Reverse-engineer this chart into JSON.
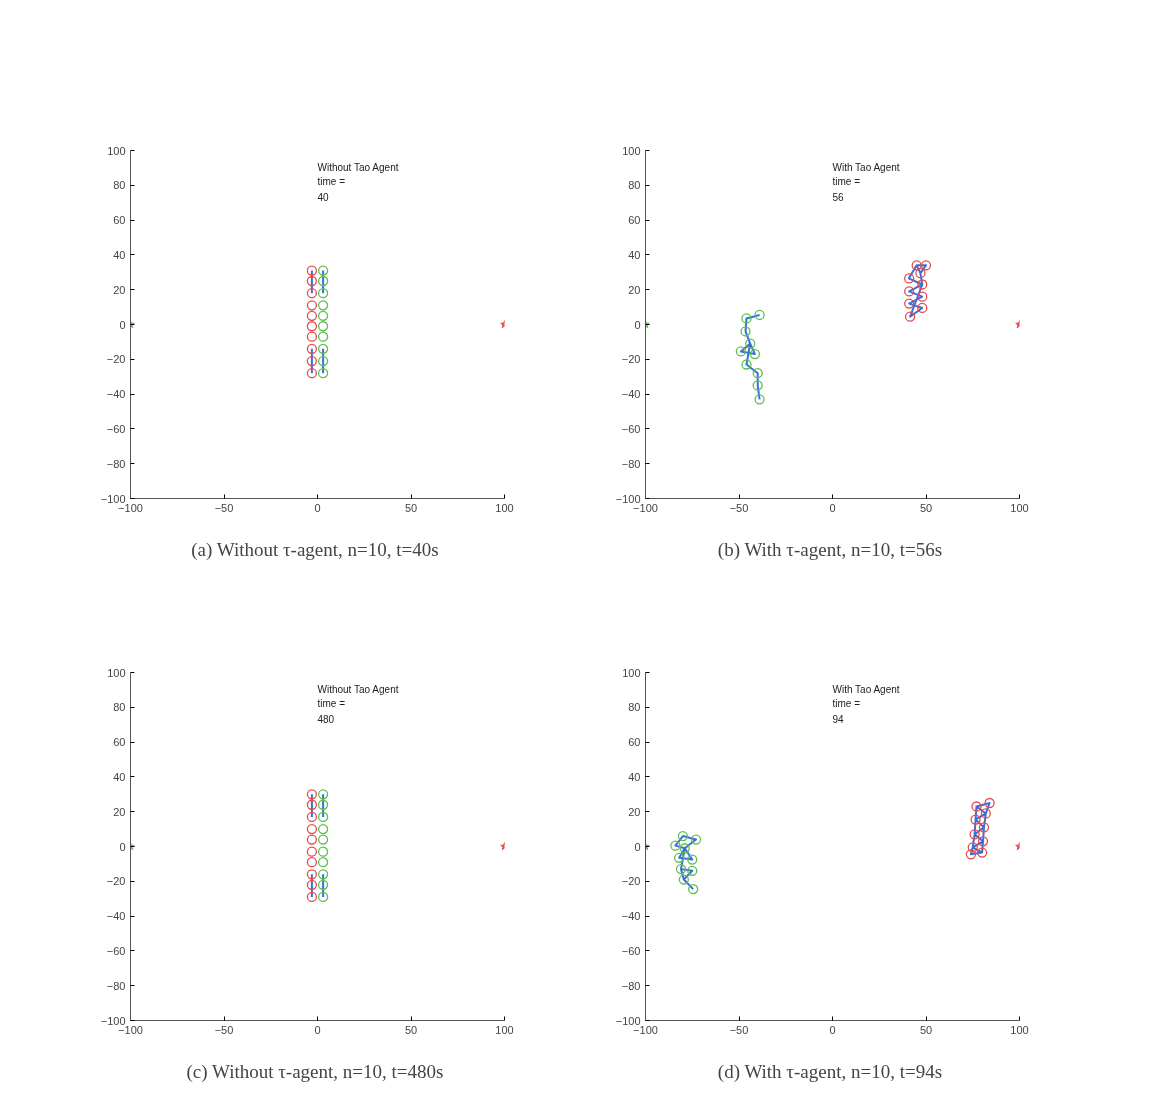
{
  "chart_data": [
    {
      "type": "scatter",
      "xlim": [
        -100,
        100
      ],
      "ylim": [
        -100,
        100
      ],
      "xticks": [
        -100,
        -50,
        0,
        50,
        100
      ],
      "yticks": [
        -100,
        -80,
        -60,
        -40,
        -20,
        0,
        20,
        40,
        60,
        80,
        100
      ],
      "grid": false,
      "annotations": [
        "Without Tao Agent",
        "time =",
        "40",
        "(a)  Without τ-agent, n=10, t=40s"
      ],
      "series": [
        {
          "type": "line",
          "color": "#3a6fd8",
          "x": [
            -3,
            -3,
            -3,
            null,
            -3,
            -3,
            -3,
            null,
            3,
            3,
            3,
            null,
            3,
            3,
            3
          ],
          "values": [
            31,
            25,
            18,
            null,
            -14,
            -21,
            -28,
            null,
            31,
            25,
            18,
            null,
            -14,
            -21,
            -28
          ]
        },
        {
          "marker": "circle",
          "color": "#e8484b",
          "x": [
            -3,
            -3,
            -3,
            -3,
            -3,
            -3,
            -3,
            -3,
            -3,
            -3
          ],
          "values": [
            31,
            25,
            18,
            11,
            5,
            -1,
            -7,
            -14,
            -21,
            -28
          ]
        },
        {
          "marker": "circle",
          "color": "#5cbf4f",
          "x": [
            3,
            3,
            3,
            3,
            3,
            3,
            3,
            3,
            3,
            3
          ],
          "values": [
            31,
            25,
            18,
            11,
            5,
            -1,
            -7,
            -14,
            -21,
            -28
          ]
        },
        {
          "marker": "star",
          "color": "#5cbf4f",
          "x": [
            -100
          ],
          "values": [
            0
          ]
        },
        {
          "marker": "star",
          "color": "#e8484b",
          "x": [
            100
          ],
          "values": [
            0
          ]
        }
      ]
    },
    {
      "type": "scatter",
      "xlim": [
        -100,
        100
      ],
      "ylim": [
        -100,
        100
      ],
      "xticks": [
        -100,
        -50,
        0,
        50,
        100
      ],
      "yticks": [
        -100,
        -80,
        -60,
        -40,
        -20,
        0,
        20,
        40,
        60,
        80,
        100
      ],
      "grid": false,
      "annotations": [
        "With Tao Agent",
        "time =",
        "56",
        "(b)  With τ-agent, n=10, t=56s"
      ],
      "series": [
        {
          "type": "line",
          "color": "#3a6fd8",
          "x": [
            -39,
            -46,
            -46.5,
            -44,
            -49,
            -41.5,
            -44,
            -46,
            -40,
            -40,
            -39
          ],
          "values": [
            5.5,
            3.5,
            -4,
            -11,
            -15.5,
            -17,
            -11,
            -23,
            -28,
            -35,
            -43
          ]
        },
        {
          "type": "line",
          "color": "#3a6fd8",
          "x": [
            45,
            50,
            47,
            45,
            40.8,
            48,
            41,
            48,
            41,
            48,
            41.5,
            48,
            47
          ],
          "values": [
            34,
            34,
            29.5,
            34,
            26.5,
            23,
            19,
            16,
            12,
            9.5,
            4.5,
            23,
            29.5
          ]
        },
        {
          "marker": "circle",
          "color": "#e8484b",
          "x": [
            45,
            50,
            47,
            41,
            48,
            41,
            48,
            41,
            48,
            41.5
          ],
          "values": [
            34,
            34,
            29.5,
            26.5,
            23,
            19,
            16,
            12,
            9.5,
            4.5
          ]
        },
        {
          "marker": "circle",
          "color": "#5cbf4f",
          "x": [
            -39,
            -46,
            -46.5,
            -44,
            -49,
            -41.5,
            -46,
            -40,
            -40,
            -39
          ],
          "values": [
            5.5,
            3.5,
            -4,
            -11,
            -15.5,
            -17,
            -23,
            -28,
            -35,
            -43
          ]
        },
        {
          "marker": "star",
          "color": "#5cbf4f",
          "x": [
            -100
          ],
          "values": [
            0
          ]
        },
        {
          "marker": "star",
          "color": "#e8484b",
          "x": [
            100
          ],
          "values": [
            0
          ]
        }
      ]
    },
    {
      "type": "scatter",
      "xlim": [
        -100,
        100
      ],
      "ylim": [
        -100,
        100
      ],
      "xticks": [
        -100,
        -50,
        0,
        50,
        100
      ],
      "yticks": [
        -100,
        -80,
        -60,
        -40,
        -20,
        0,
        20,
        40,
        60,
        80,
        100
      ],
      "grid": false,
      "annotations": [
        "Without Tao Agent",
        "time =",
        "480",
        "(c)  Without τ-agent, n=10, t=480s"
      ],
      "series": [
        {
          "type": "line",
          "color": "#3a6fd8",
          "x": [
            -3,
            -3,
            -3,
            null,
            -3,
            -3,
            -3,
            null,
            3,
            3,
            3,
            null,
            3,
            3,
            3
          ],
          "values": [
            30,
            24,
            17,
            null,
            -16,
            -22,
            -29,
            null,
            30,
            24,
            17,
            null,
            -16,
            -22,
            -29
          ]
        },
        {
          "marker": "circle",
          "color": "#e8484b",
          "x": [
            -3,
            -3,
            -3,
            -3,
            -3,
            -3,
            -3,
            -3,
            -3,
            -3
          ],
          "values": [
            30,
            24,
            17,
            10,
            4,
            -3,
            -9,
            -16,
            -22,
            -29
          ]
        },
        {
          "marker": "circle",
          "color": "#5cbf4f",
          "x": [
            3,
            3,
            3,
            3,
            3,
            3,
            3,
            3,
            3,
            3
          ],
          "values": [
            30,
            24,
            17,
            10,
            4,
            -3,
            -9,
            -16,
            -22,
            -29
          ]
        },
        {
          "marker": "star",
          "color": "#5cbf4f",
          "x": [
            -100
          ],
          "values": [
            0
          ]
        },
        {
          "marker": "star",
          "color": "#e8484b",
          "x": [
            100
          ],
          "values": [
            0
          ]
        }
      ]
    },
    {
      "type": "scatter",
      "xlim": [
        -100,
        100
      ],
      "ylim": [
        -100,
        100
      ],
      "xticks": [
        -100,
        -50,
        0,
        50,
        100
      ],
      "yticks": [
        -100,
        -80,
        -60,
        -40,
        -20,
        0,
        20,
        40,
        60,
        80,
        100
      ],
      "grid": false,
      "annotations": [
        "With Tao Agent",
        "time =",
        "94",
        "(d)  With τ-agent, n=10, t=94s"
      ],
      "series": [
        {
          "type": "line",
          "color": "#3a6fd8",
          "x": [
            -84,
            -80,
            -73,
            -79,
            -84,
            -79,
            -82,
            -75,
            -79,
            -81,
            -75,
            -81,
            -79.5,
            -75,
            -79.5,
            -74.5
          ],
          "values": [
            0.5,
            6,
            4,
            -1,
            0.5,
            -1,
            -6.5,
            -7.5,
            -1,
            -13,
            -14,
            -13,
            -19,
            -14,
            -19,
            -24.5
          ]
        },
        {
          "type": "line",
          "color": "#3a6fd8",
          "x": [
            84,
            77,
            82,
            76.5,
            81,
            76,
            80.5,
            75,
            80,
            74,
            75,
            76,
            76.5,
            77,
            84,
            82,
            81,
            80.5,
            80
          ],
          "values": [
            25,
            23,
            19,
            15.5,
            11,
            7,
            3,
            -0.5,
            -3.5,
            -4.5,
            -0.5,
            7,
            15.5,
            23,
            25,
            19,
            11,
            3,
            -3.5
          ]
        },
        {
          "marker": "circle",
          "color": "#e8484b",
          "x": [
            84,
            77,
            82,
            76.5,
            81,
            76,
            80.5,
            75,
            80,
            74
          ],
          "values": [
            25,
            23,
            19,
            15.5,
            11,
            7,
            3,
            -0.5,
            -3.5,
            -4.5
          ]
        },
        {
          "marker": "circle",
          "color": "#5cbf4f",
          "x": [
            -80,
            -73,
            -84,
            -79,
            -82,
            -75,
            -81,
            -75,
            -79.5,
            -74.5
          ],
          "values": [
            6,
            4,
            0.5,
            -1,
            -6.5,
            -7.5,
            -13,
            -14,
            -19,
            -24.5
          ]
        },
        {
          "marker": "star",
          "color": "#5cbf4f",
          "x": [
            -100
          ],
          "values": [
            0
          ]
        },
        {
          "marker": "star",
          "color": "#e8484b",
          "x": [
            100
          ],
          "values": [
            0
          ]
        }
      ]
    }
  ]
}
